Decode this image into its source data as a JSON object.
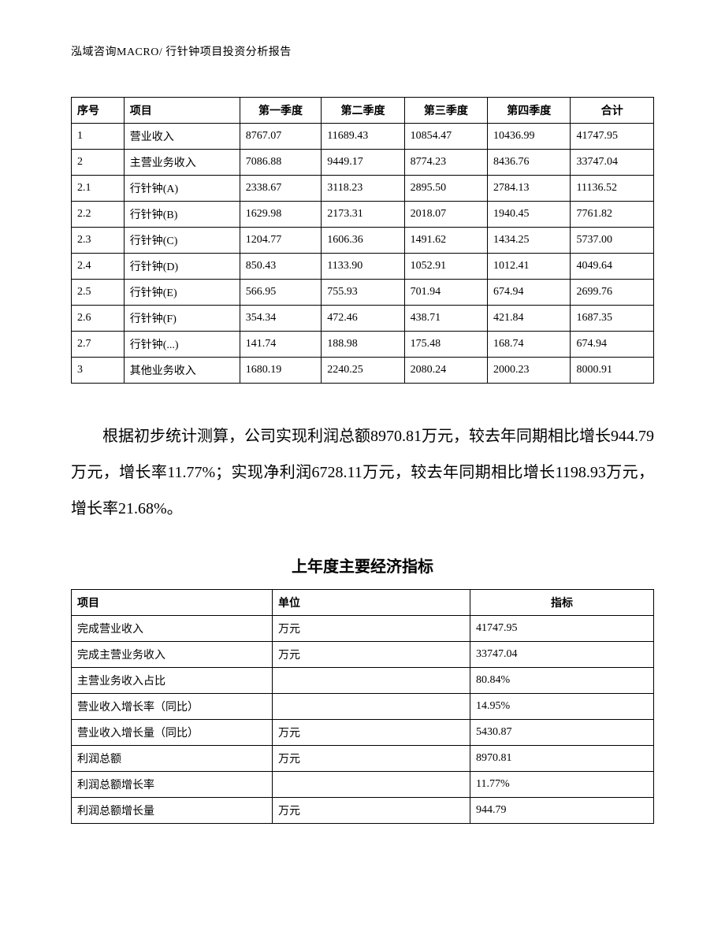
{
  "header": "泓域咨询MACRO/    行针钟项目投资分析报告",
  "table1": {
    "headers": [
      "序号",
      "项目",
      "第一季度",
      "第二季度",
      "第三季度",
      "第四季度",
      "合计"
    ],
    "rows": [
      [
        "1",
        "营业收入",
        "8767.07",
        "11689.43",
        "10854.47",
        "10436.99",
        "41747.95"
      ],
      [
        "2",
        "主营业务收入",
        "7086.88",
        "9449.17",
        "8774.23",
        "8436.76",
        "33747.04"
      ],
      [
        "2.1",
        "行针钟(A)",
        "2338.67",
        "3118.23",
        "2895.50",
        "2784.13",
        "11136.52"
      ],
      [
        "2.2",
        "行针钟(B)",
        "1629.98",
        "2173.31",
        "2018.07",
        "1940.45",
        "7761.82"
      ],
      [
        "2.3",
        "行针钟(C)",
        "1204.77",
        "1606.36",
        "1491.62",
        "1434.25",
        "5737.00"
      ],
      [
        "2.4",
        "行针钟(D)",
        "850.43",
        "1133.90",
        "1052.91",
        "1012.41",
        "4049.64"
      ],
      [
        "2.5",
        "行针钟(E)",
        "566.95",
        "755.93",
        "701.94",
        "674.94",
        "2699.76"
      ],
      [
        "2.6",
        "行针钟(F)",
        "354.34",
        "472.46",
        "438.71",
        "421.84",
        "1687.35"
      ],
      [
        "2.7",
        "行针钟(...)",
        "141.74",
        "188.98",
        "175.48",
        "168.74",
        "674.94"
      ],
      [
        "3",
        "其他业务收入",
        "1680.19",
        "2240.25",
        "2080.24",
        "2000.23",
        "8000.91"
      ]
    ]
  },
  "paragraph": "根据初步统计测算，公司实现利润总额8970.81万元，较去年同期相比增长944.79万元，增长率11.77%；实现净利润6728.11万元，较去年同期相比增长1198.93万元，增长率21.68%。",
  "subtitle": "上年度主要经济指标",
  "table2": {
    "headers": [
      "项目",
      "单位",
      "指标"
    ],
    "rows": [
      [
        "完成营业收入",
        "万元",
        "41747.95"
      ],
      [
        "完成主营业务收入",
        "万元",
        "33747.04"
      ],
      [
        "主营业务收入占比",
        "",
        "80.84%"
      ],
      [
        "营业收入增长率（同比）",
        "",
        "14.95%"
      ],
      [
        "营业收入增长量（同比）",
        "万元",
        "5430.87"
      ],
      [
        "利润总额",
        "万元",
        "8970.81"
      ],
      [
        "利润总额增长率",
        "",
        "11.77%"
      ],
      [
        "利润总额增长量",
        "万元",
        "944.79"
      ]
    ]
  }
}
